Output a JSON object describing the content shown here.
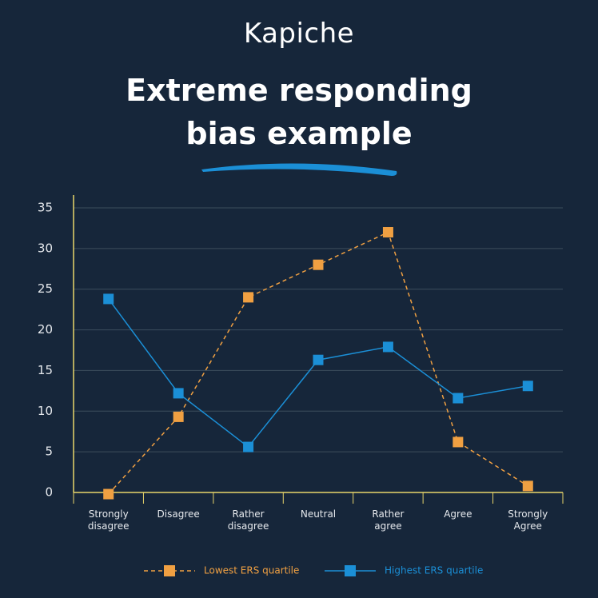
{
  "brand": "Kapiche",
  "chart_data": {
    "type": "line",
    "title": "Extreme responding bias example",
    "categories": [
      "Strongly disagree",
      "Disagree",
      "Rather disagree",
      "Neutral",
      "Rather agree",
      "Agree",
      "Strongly Agree"
    ],
    "series": [
      {
        "name": "Lowest ERS quartile",
        "color": "#f0a042",
        "line_style": "dashed",
        "values": [
          -0.2,
          9.3,
          24,
          28,
          32,
          6.2,
          0.8
        ]
      },
      {
        "name": "Highest ERS quartile",
        "color": "#1b8fd6",
        "line_style": "solid",
        "values": [
          23.8,
          12.2,
          5.6,
          16.3,
          17.9,
          11.6,
          13.1
        ]
      }
    ],
    "ylim": [
      0,
      35
    ],
    "yticks": [
      0,
      5,
      10,
      15,
      20,
      25,
      30,
      35
    ],
    "grid": true,
    "legend": "bottom"
  }
}
